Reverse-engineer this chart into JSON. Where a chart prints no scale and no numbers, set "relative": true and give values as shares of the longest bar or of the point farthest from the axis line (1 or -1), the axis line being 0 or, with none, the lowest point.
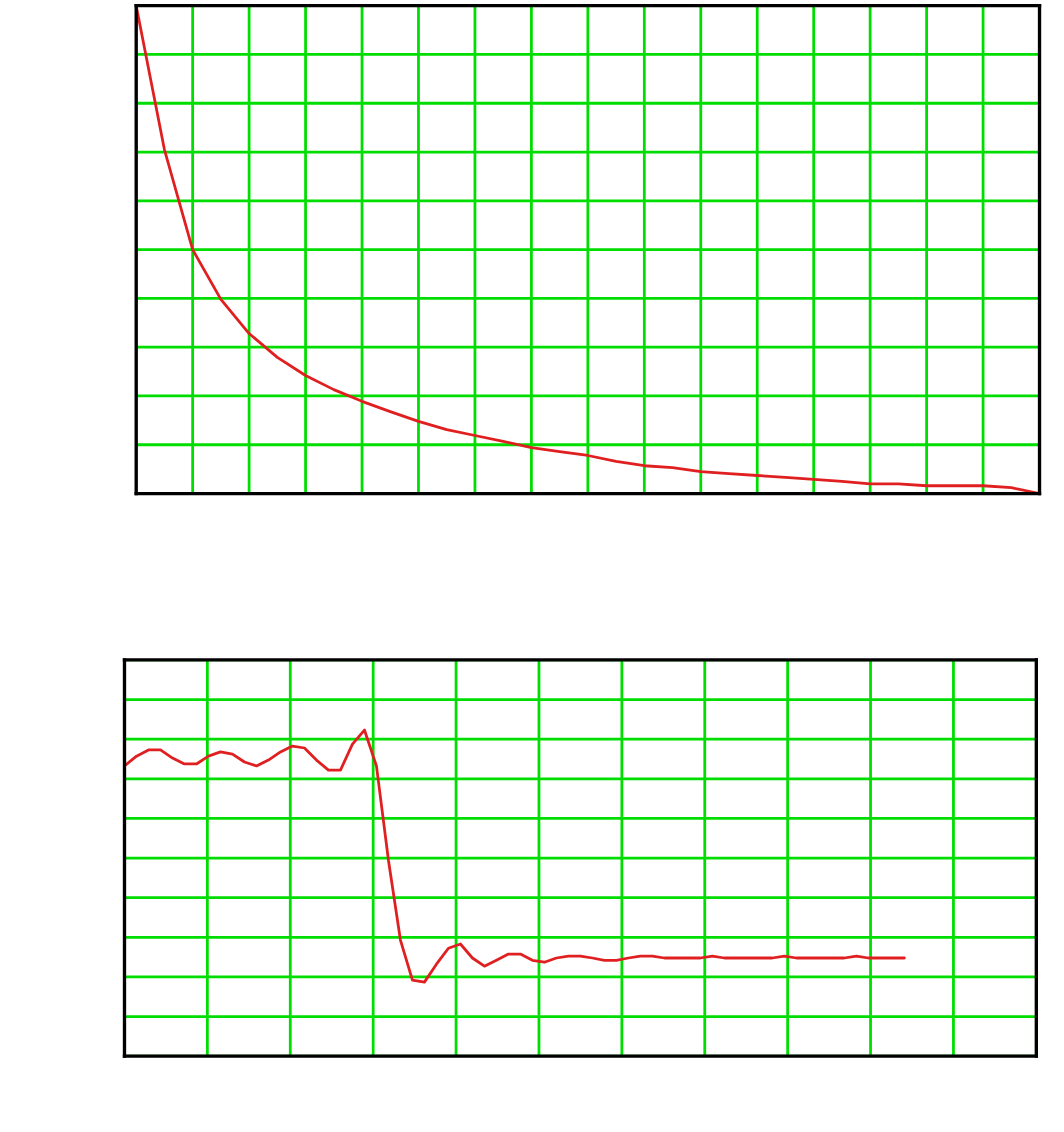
{
  "chart_data": [
    {
      "type": "line",
      "relative": true,
      "grid": true,
      "tick_labels": false,
      "categories": [
        null,
        null,
        null,
        null,
        null,
        null,
        null,
        null,
        null,
        null,
        null,
        null,
        null,
        null,
        null,
        null,
        null,
        null,
        null,
        null,
        null,
        null,
        null,
        null,
        null,
        null,
        null,
        null,
        null,
        null,
        null,
        null,
        null
      ],
      "series": [
        {
          "color": "#e02020",
          "values": [
            1.0,
            0.705,
            0.5,
            0.398,
            0.328,
            0.279,
            0.242,
            0.213,
            0.189,
            0.168,
            0.148,
            0.131,
            0.119,
            0.107,
            0.094,
            0.086,
            0.078,
            0.066,
            0.057,
            0.053,
            0.045,
            0.041,
            0.037,
            0.033,
            0.029,
            0.025,
            0.02,
            0.02,
            0.016,
            0.016,
            0.016,
            0.012,
            0.0
          ]
        }
      ]
    },
    {
      "type": "line",
      "relative": true,
      "grid": true,
      "tick_labels": false,
      "categories": [
        null,
        null,
        null,
        null,
        null,
        null,
        null,
        null,
        null,
        null,
        null,
        null,
        null,
        null,
        null,
        null,
        null,
        null,
        null,
        null,
        null,
        null,
        null,
        null,
        null,
        null,
        null,
        null,
        null,
        null,
        null,
        null,
        null,
        null,
        null,
        null,
        null,
        null,
        null,
        null,
        null,
        null,
        null,
        null,
        null,
        null,
        null,
        null,
        null,
        null,
        null,
        null,
        null,
        null,
        null,
        null,
        null,
        null,
        null,
        null,
        null,
        null,
        null,
        null,
        null,
        null,
        null,
        null,
        null,
        null,
        null,
        null,
        null,
        null,
        null,
        null,
        null
      ],
      "series": [
        {
          "color": "#e02020",
          "values": [
            0.89,
            0.92,
            0.939,
            0.939,
            0.914,
            0.896,
            0.896,
            0.92,
            0.933,
            0.926,
            0.902,
            0.89,
            0.908,
            0.933,
            0.951,
            0.945,
            0.908,
            0.877,
            0.877,
            0.957,
            1.0,
            0.89,
            0.601,
            0.356,
            0.233,
            0.227,
            0.282,
            0.331,
            0.344,
            0.301,
            0.276,
            0.294,
            0.313,
            0.313,
            0.294,
            0.288,
            0.301,
            0.307,
            0.307,
            0.301,
            0.294,
            0.294,
            0.301,
            0.307,
            0.307,
            0.301,
            0.301,
            0.301,
            0.301,
            0.307,
            0.301,
            0.301,
            0.301,
            0.301,
            0.301,
            0.307,
            0.301,
            0.301,
            0.301,
            0.301,
            0.301,
            0.307,
            0.301,
            0.301,
            0.301,
            0.301,
            null,
            null,
            null,
            null,
            null,
            null,
            null,
            null,
            null,
            null,
            null
          ]
        }
      ]
    }
  ]
}
